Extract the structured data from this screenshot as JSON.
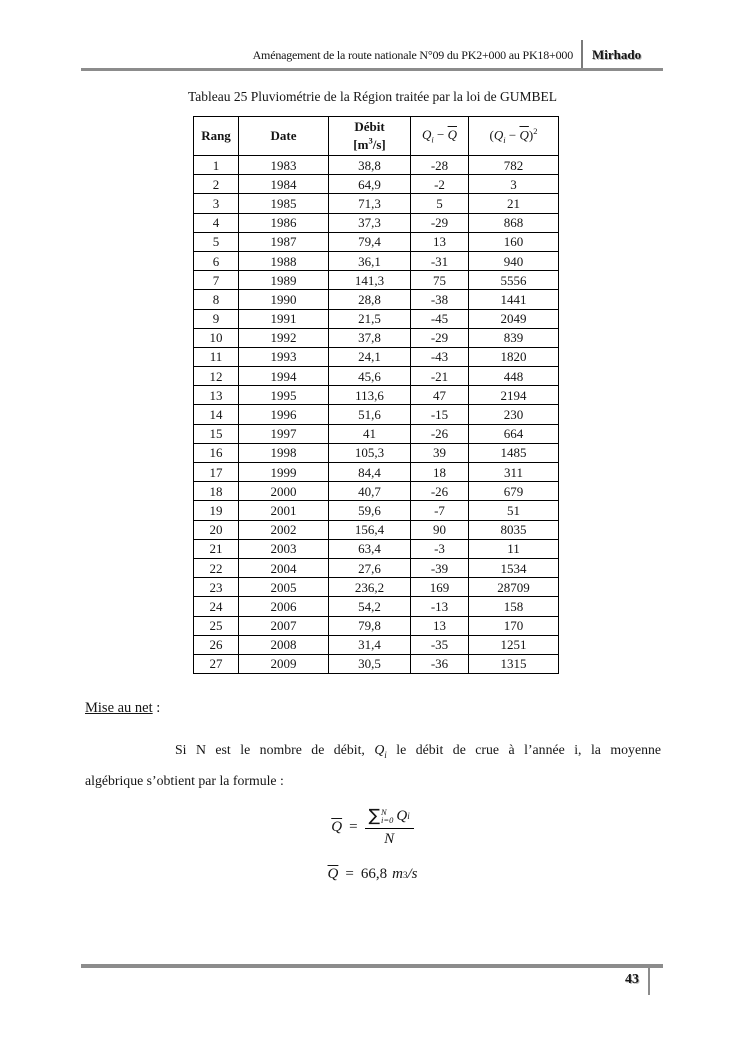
{
  "header": {
    "title": "Aménagement de la route nationale N°09 du PK2+000 au PK18+000",
    "brand": "Mirhado"
  },
  "document_title": "Tableau 25 Pluviométrie de la Région traitée par la loi de GUMBEL",
  "table": {
    "columns": [
      "Rang",
      "Date",
      "Débit [m³/s]",
      "Qᵢ − Q̄",
      "(Qᵢ − Q̄)²"
    ],
    "header_parts": {
      "rang": "Rang",
      "date": "Date",
      "debit_line1": "Débit",
      "debit_unit_prefix": "[m",
      "debit_unit_sup": "3",
      "debit_unit_suffix": "/s]",
      "q": "Q",
      "sub_i": "i",
      "minus": "−",
      "open_paren": "(",
      "close_paren": ")",
      "square_sup": "2"
    },
    "rows": [
      [
        "1",
        "1983",
        "38,8",
        "-28",
        "782"
      ],
      [
        "2",
        "1984",
        "64,9",
        "-2",
        "3"
      ],
      [
        "3",
        "1985",
        "71,3",
        "5",
        "21"
      ],
      [
        "4",
        "1986",
        "37,3",
        "-29",
        "868"
      ],
      [
        "5",
        "1987",
        "79,4",
        "13",
        "160"
      ],
      [
        "6",
        "1988",
        "36,1",
        "-31",
        "940"
      ],
      [
        "7",
        "1989",
        "141,3",
        "75",
        "5556"
      ],
      [
        "8",
        "1990",
        "28,8",
        "-38",
        "1441"
      ],
      [
        "9",
        "1991",
        "21,5",
        "-45",
        "2049"
      ],
      [
        "10",
        "1992",
        "37,8",
        "-29",
        "839"
      ],
      [
        "11",
        "1993",
        "24,1",
        "-43",
        "1820"
      ],
      [
        "12",
        "1994",
        "45,6",
        "-21",
        "448"
      ],
      [
        "13",
        "1995",
        "113,6",
        "47",
        "2194"
      ],
      [
        "14",
        "1996",
        "51,6",
        "-15",
        "230"
      ],
      [
        "15",
        "1997",
        "41",
        "-26",
        "664"
      ],
      [
        "16",
        "1998",
        "105,3",
        "39",
        "1485"
      ],
      [
        "17",
        "1999",
        "84,4",
        "18",
        "311"
      ],
      [
        "18",
        "2000",
        "40,7",
        "-26",
        "679"
      ],
      [
        "19",
        "2001",
        "59,6",
        "-7",
        "51"
      ],
      [
        "20",
        "2002",
        "156,4",
        "90",
        "8035"
      ],
      [
        "21",
        "2003",
        "63,4",
        "-3",
        "11"
      ],
      [
        "22",
        "2004",
        "27,6",
        "-39",
        "1534"
      ],
      [
        "23",
        "2005",
        "236,2",
        "169",
        "28709"
      ],
      [
        "24",
        "2006",
        "54,2",
        "-13",
        "158"
      ],
      [
        "25",
        "2007",
        "79,8",
        "13",
        "170"
      ],
      [
        "26",
        "2008",
        "31,4",
        "-35",
        "1251"
      ],
      [
        "27",
        "2009",
        "30,5",
        "-36",
        "1315"
      ]
    ]
  },
  "body": {
    "heading": "Mise au net",
    "heading_colon": " :",
    "line1_pre": "Si N est le nombre de débit, ",
    "line1_math_q": "Q",
    "line1_math_sub": "i",
    "line1_post": " le débit de crue à l’année i, la moyenne",
    "line2": "algébrique s’obtient par la formule :"
  },
  "formulas": {
    "mean": {
      "lhs": "Q",
      "equals": "=",
      "sum_symbol": "∑",
      "sum_upper": "N",
      "sum_lower": "i=0",
      "term": "Q",
      "term_sub": "i",
      "denominator": "N"
    },
    "value": {
      "lhs": "Q",
      "equals": "=",
      "number": "66,8",
      "unit_m": "m",
      "unit_sup": "3",
      "unit_rest": "/s"
    }
  },
  "footer": {
    "page_number": "43"
  }
}
